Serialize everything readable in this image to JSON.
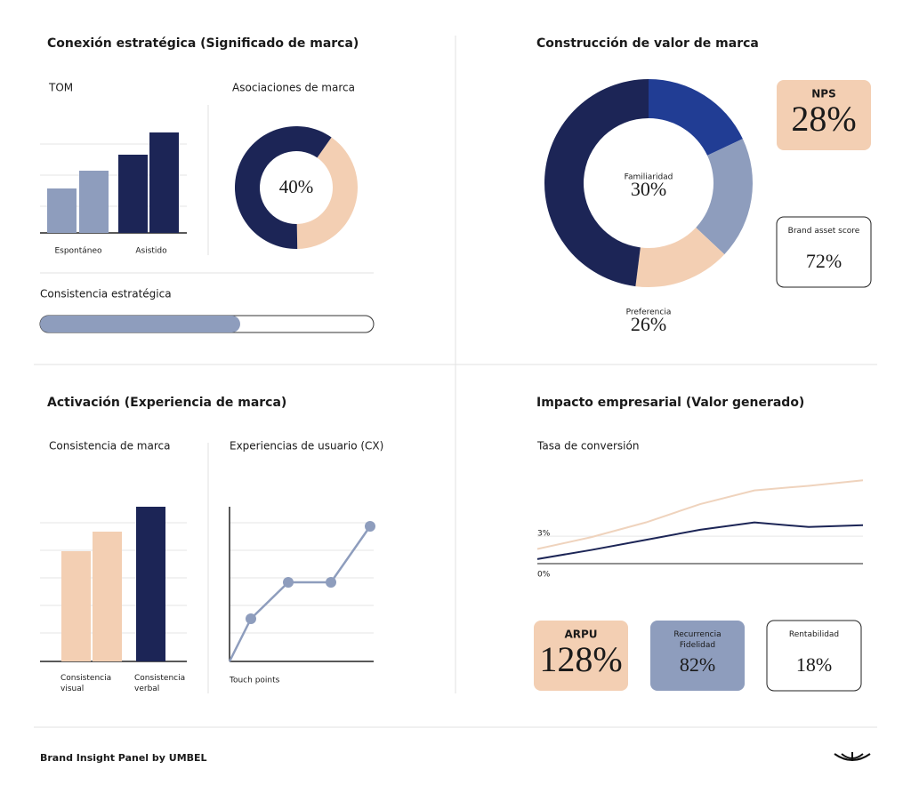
{
  "conexion": {
    "title": "Conexión estratégica (Significado de marca)",
    "tom": {
      "type": "bar",
      "title": "TOM",
      "ylim": [
        0,
        130
      ],
      "groups": [
        {
          "label": "Espontáneo",
          "color": "#8e9dbd",
          "values": [
            50,
            70
          ]
        },
        {
          "label": "Asistido",
          "color": "#1c2556",
          "values": [
            88,
            113
          ]
        }
      ]
    },
    "asociaciones": {
      "type": "donut",
      "title": "Asociaciones de marca",
      "center_label": "40%",
      "segments": [
        {
          "value": 40,
          "color": "#f3cfb3"
        },
        {
          "value": 60,
          "color": "#1c2556"
        }
      ]
    },
    "consistencia": {
      "type": "progress",
      "label": "Consistencia estratégica",
      "value": 60,
      "max": 100,
      "color": "#8e9dbd"
    }
  },
  "construccion": {
    "title": "Construcción de valor de marca",
    "donut": {
      "type": "donut",
      "segments": [
        {
          "value": 18,
          "color": "#213d94"
        },
        {
          "value": 19,
          "color": "#8e9dbd"
        },
        {
          "value": 15,
          "color": "#f3cfb3"
        },
        {
          "value": 48,
          "color": "#1c2556"
        }
      ],
      "labels": [
        {
          "name": "Familiaridad",
          "value": "30%"
        },
        {
          "name": "Preferencia",
          "value": "26%"
        }
      ]
    },
    "nps": {
      "label": "NPS",
      "value": "28%"
    },
    "brand_asset": {
      "label": "Brand asset score",
      "value": "72%"
    }
  },
  "activacion": {
    "title": "Activación (Experiencia de marca)",
    "consistencia": {
      "type": "bar",
      "title": "Consistencia de marca",
      "ylim": [
        0,
        180
      ],
      "groups": [
        {
          "label": "Consistencia visual",
          "color": "#f3cfb3",
          "values": [
            124,
            146
          ]
        },
        {
          "label": "Consistencia verbal",
          "color": "#1c2556",
          "values": [
            174
          ]
        }
      ]
    },
    "cx": {
      "type": "line",
      "title": "Experiencias de usuario (CX)",
      "xlabel": "Touch points",
      "x": [
        0,
        24,
        66,
        114,
        158
      ],
      "y": [
        0,
        48,
        89,
        89,
        152
      ],
      "xlim": [
        0,
        162
      ],
      "ylim": [
        0,
        174
      ],
      "color": "#8e9dbd"
    }
  },
  "impacto": {
    "title": "Impacto empresarial (Valor generado)",
    "conversion": {
      "type": "line",
      "title": "Tasa de conversión",
      "x": [
        0,
        1,
        2,
        3,
        4,
        5,
        6
      ],
      "xlim": [
        0,
        6
      ],
      "ylim": [
        0,
        10
      ],
      "yticks": [
        {
          "value": 0,
          "label": "0%"
        },
        {
          "value": 3,
          "label": "3%"
        }
      ],
      "series": [
        {
          "color": "#efd3bd",
          "values": [
            1.6,
            2.9,
            4.5,
            6.5,
            8.0,
            8.5,
            9.1
          ]
        },
        {
          "color": "#1c2556",
          "values": [
            0.5,
            1.5,
            2.6,
            3.7,
            4.5,
            4.0,
            4.2
          ]
        }
      ]
    },
    "arpu": {
      "label": "ARPU",
      "value": "128%"
    },
    "recurrencia": {
      "label": "Recurrencia Fidelidad",
      "value": "82%"
    },
    "rentabilidad": {
      "label": "Rentabilidad",
      "value": "18%"
    }
  },
  "footer": {
    "text": "Brand Insight Panel by UMBEL"
  }
}
